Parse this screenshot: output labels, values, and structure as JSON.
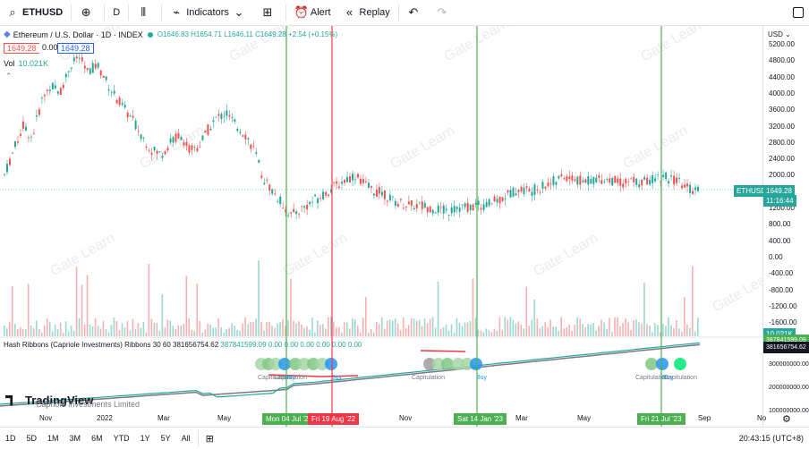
{
  "toolbar": {
    "symbol": "ETHUSD",
    "interval": "D",
    "indicators_label": "Indicators",
    "alert_label": "Alert",
    "replay_label": "Replay"
  },
  "legend": {
    "title": "Ethereum / U.S. Dollar · 1D · INDEX",
    "open": "O1646.83",
    "high": "H1654.71",
    "low": "L1646.11",
    "close": "C1649.28",
    "change": "+2.54 (+0.15%)",
    "bid": "1649.28",
    "spread": "0.00",
    "ask": "1649.28",
    "vol_label": "Vol",
    "vol_value": "10.021K"
  },
  "hash": {
    "name": "Hash Ribbons (Capriole Investments) Ribbons 30 60",
    "v1": "381656754.62",
    "v2": "387841599.09",
    "rest": "0.00 0.00 0.00 0.00 0.00 0.00"
  },
  "watermark_text": "Gate Learn",
  "copyright": "Capriole Investments Limited",
  "logo_text": "TradingView",
  "currency": "USD",
  "price_axis": [
    "5200.00",
    "4800.00",
    "4400.00",
    "4000.00",
    "3600.00",
    "3200.00",
    "2800.00",
    "2400.00",
    "2000.00",
    "1600.00",
    "1200.00",
    "800.00",
    "400.00",
    "0.00",
    "-400.00",
    "-800.00",
    "-1200.00",
    "-1600.00"
  ],
  "right_badges": {
    "symbol": "ETHUSD",
    "price": "1649.28",
    "countdown": "11:16:44",
    "vol": "10.021K",
    "hash1": "387841599.09",
    "hash2": "381656754.62"
  },
  "hash_axis": [
    "300000000.00",
    "200000000.00",
    "100000000.00"
  ],
  "x_axis": [
    "Nov",
    "2022",
    "Mar",
    "May",
    "Nov",
    "Mar",
    "May",
    "Sep",
    "No"
  ],
  "date_badges": [
    "Mon 04 Jul '22",
    "Fri 19 Aug '22",
    "Sat 14 Jan '23",
    "Fri 21 Jul '23"
  ],
  "signal_labels": [
    "Capitulation",
    "Capitulation",
    "Buy",
    "Buy",
    "Capitulation",
    "Buy",
    "Capitulation",
    "Buy",
    "Capitulation"
  ],
  "timeframes": [
    "1D",
    "5D",
    "1M",
    "3M",
    "6M",
    "YTD",
    "1Y",
    "5Y",
    "All"
  ],
  "clock": "20:43:15 (UTC+8)",
  "colors": {
    "up": "#26a69a",
    "down": "#ef5350",
    "buy_line": "#4caf50",
    "sell_line": "#f23645",
    "signal_blue": "#2196f3"
  },
  "chart_data": {
    "type": "line",
    "price_series": [
      2.0,
      2.6,
      3.2,
      2.9,
      3.8,
      4.2,
      4.0,
      4.6,
      4.9,
      4.5,
      4.7,
      4.3,
      3.9,
      3.6,
      3.3,
      2.9,
      2.6,
      2.5,
      2.8,
      3.0,
      2.6,
      2.7,
      3.1,
      3.4,
      3.5,
      3.2,
      3.0,
      2.6,
      1.9,
      1.6,
      1.3,
      1.0,
      1.15,
      1.3,
      1.45,
      1.6,
      1.75,
      1.9,
      2.0,
      1.75,
      1.6,
      1.55,
      1.35,
      1.3,
      1.25,
      1.25,
      1.2,
      1.15,
      1.1,
      1.2,
      1.2,
      1.25,
      1.25,
      1.35,
      1.45,
      1.6,
      1.65,
      1.6,
      1.7,
      1.8,
      1.9,
      1.95,
      1.85,
      1.85,
      1.9,
      1.9,
      1.85,
      1.8,
      1.85,
      1.8,
      1.9,
      1.95,
      1.9,
      1.8,
      1.65,
      1.65
    ],
    "ylim": [
      -1600,
      5200
    ]
  }
}
